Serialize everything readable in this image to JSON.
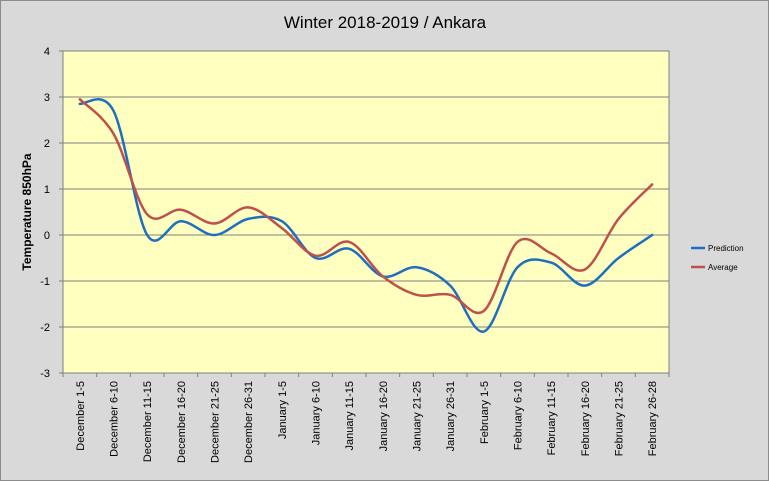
{
  "chart_data": {
    "type": "line",
    "title": "Winter 2018-2019 / Ankara",
    "xlabel": "",
    "ylabel": "Temperature 850hPa",
    "ylim": [
      -3,
      4
    ],
    "yticks": [
      -3,
      -2,
      -1,
      0,
      1,
      2,
      3,
      4
    ],
    "grid": true,
    "legend_position": "right",
    "plot_background": "#ffffc0",
    "categories": [
      "December 1-5",
      "December 6-10",
      "December 11-15",
      "December 16-20",
      "December 21-25",
      "December 26-31",
      "January 1-5",
      "January 6-10",
      "January 11-15",
      "January 16-20",
      "January 21-25",
      "January 26-31",
      "February 1-5",
      "February 6-10",
      "February 11-15",
      "February 16-20",
      "February 21-25",
      "February 26-28"
    ],
    "series": [
      {
        "name": "Prediction",
        "color": "#1f6fc0",
        "values": [
          2.85,
          2.7,
          0.0,
          0.3,
          0.0,
          0.35,
          0.3,
          -0.5,
          -0.3,
          -0.9,
          -0.7,
          -1.1,
          -2.1,
          -0.7,
          -0.6,
          -1.1,
          -0.5,
          0.0
        ]
      },
      {
        "name": "Average",
        "color": "#c0504d",
        "values": [
          2.95,
          2.2,
          0.45,
          0.55,
          0.25,
          0.6,
          0.15,
          -0.45,
          -0.15,
          -0.9,
          -1.3,
          -1.3,
          -1.65,
          -0.15,
          -0.4,
          -0.75,
          0.35,
          1.1
        ]
      }
    ]
  }
}
